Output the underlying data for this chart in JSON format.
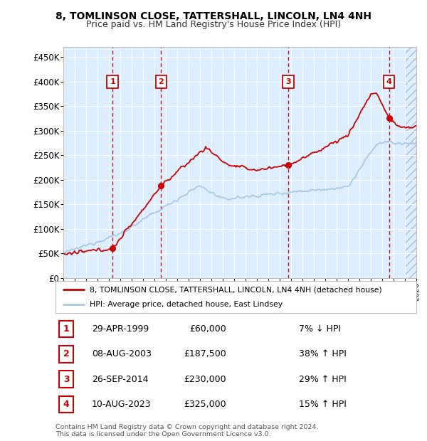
{
  "title1": "8, TOMLINSON CLOSE, TATTERSHALL, LINCOLN, LN4 4NH",
  "title2": "Price paid vs. HM Land Registry's House Price Index (HPI)",
  "ylabel_ticks": [
    "£0",
    "£50K",
    "£100K",
    "£150K",
    "£200K",
    "£250K",
    "£300K",
    "£350K",
    "£400K",
    "£450K"
  ],
  "ytick_values": [
    0,
    50000,
    100000,
    150000,
    200000,
    250000,
    300000,
    350000,
    400000,
    450000
  ],
  "xlim_start": 1995.0,
  "xlim_end": 2026.0,
  "ylim_top": 470000,
  "purchases": [
    {
      "num": 1,
      "date": "29-APR-1999",
      "price": 60000,
      "year": 1999.33,
      "pct": "7%",
      "dir": "↓"
    },
    {
      "num": 2,
      "date": "08-AUG-2003",
      "price": 187500,
      "year": 2003.6,
      "pct": "38%",
      "dir": "↑"
    },
    {
      "num": 3,
      "date": "26-SEP-2014",
      "price": 230000,
      "year": 2014.75,
      "pct": "29%",
      "dir": "↑"
    },
    {
      "num": 4,
      "date": "10-AUG-2023",
      "price": 325000,
      "year": 2023.6,
      "pct": "15%",
      "dir": "↑"
    }
  ],
  "legend_line1": "8, TOMLINSON CLOSE, TATTERSHALL, LINCOLN, LN4 4NH (detached house)",
  "legend_line2": "HPI: Average price, detached house, East Lindsey",
  "footer1": "Contains HM Land Registry data © Crown copyright and database right 2024.",
  "footer2": "This data is licensed under the Open Government Licence v3.0.",
  "hpi_color": "#a8c8e8",
  "price_color": "#cc0000",
  "bg_color": "#ddeeff",
  "future_start": 2025.0
}
